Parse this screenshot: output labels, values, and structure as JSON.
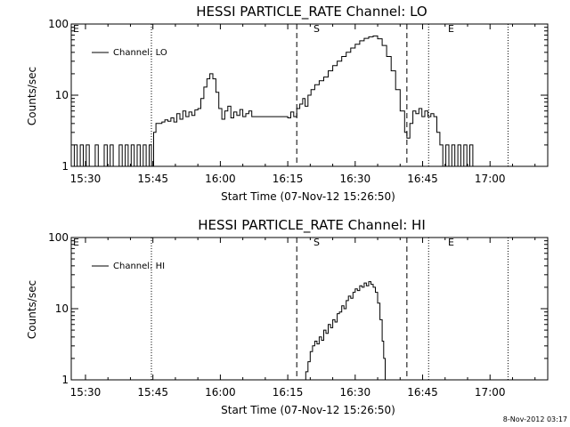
{
  "chart_data": [
    {
      "type": "line",
      "title": "HESSI PARTICLE_RATE Channel: LO",
      "xlabel": "Start Time (07-Nov-12 15:26:50)",
      "ylabel": "Counts/sec",
      "yscale": "log",
      "ylim": [
        1,
        100
      ],
      "xlim": [
        "15:26:50",
        "17:12:50"
      ],
      "xticks": [
        "15:30",
        "15:45",
        "16:00",
        "16:15",
        "16:30",
        "16:45",
        "17:00"
      ],
      "yticks": [
        "1",
        "10",
        "100"
      ],
      "legend": {
        "label": "Channel: LO",
        "placement": "top-left"
      },
      "markers": [
        {
          "label": "E",
          "x": "15:26:50",
          "style": "dotted"
        },
        {
          "label": "",
          "x": "15:44:40",
          "style": "dotted"
        },
        {
          "label": "S",
          "x": "16:17:00",
          "style": "dashed"
        },
        {
          "label": "",
          "x": "16:41:30",
          "style": "dashed"
        },
        {
          "label": "E",
          "x": "16:46:20",
          "style": "dotted"
        },
        {
          "label": "",
          "x": "17:04:00",
          "style": "dotted"
        }
      ],
      "series": [
        {
          "name": "Channel: LO",
          "points": [
            [
              "15:26:50",
              1
            ],
            [
              "15:27:30",
              2
            ],
            [
              "15:28:10",
              1
            ],
            [
              "15:28:50",
              2
            ],
            [
              "15:29:30",
              1
            ],
            [
              "15:30:10",
              2
            ],
            [
              "15:30:50",
              1
            ],
            [
              "15:31:30",
              1
            ],
            [
              "15:32:10",
              2
            ],
            [
              "15:32:50",
              1
            ],
            [
              "15:33:30",
              1
            ],
            [
              "15:34:10",
              2
            ],
            [
              "15:34:50",
              1
            ],
            [
              "15:35:30",
              2
            ],
            [
              "15:36:10",
              1
            ],
            [
              "15:36:50",
              1
            ],
            [
              "15:37:30",
              2
            ],
            [
              "15:38:10",
              1
            ],
            [
              "15:38:50",
              2
            ],
            [
              "15:39:30",
              1
            ],
            [
              "15:40:10",
              2
            ],
            [
              "15:40:50",
              1
            ],
            [
              "15:41:30",
              2
            ],
            [
              "15:42:10",
              1
            ],
            [
              "15:42:50",
              2
            ],
            [
              "15:43:30",
              1
            ],
            [
              "15:44:10",
              2
            ],
            [
              "15:44:40",
              1
            ],
            [
              "15:45:10",
              3
            ],
            [
              "15:45:40",
              4
            ],
            [
              "15:46:20",
              4
            ],
            [
              "15:47:00",
              4.2
            ],
            [
              "15:47:40",
              4.5
            ],
            [
              "15:48:20",
              4.3
            ],
            [
              "15:49:00",
              4.8
            ],
            [
              "15:49:40",
              4.2
            ],
            [
              "15:50:20",
              5.5
            ],
            [
              "15:51:00",
              4.6
            ],
            [
              "15:51:40",
              6
            ],
            [
              "15:52:20",
              5
            ],
            [
              "15:53:00",
              5.8
            ],
            [
              "15:53:40",
              5.2
            ],
            [
              "15:54:20",
              6.2
            ],
            [
              "15:55:00",
              6.5
            ],
            [
              "15:55:40",
              9
            ],
            [
              "15:56:20",
              13
            ],
            [
              "15:57:00",
              17
            ],
            [
              "15:57:40",
              20
            ],
            [
              "15:58:20",
              17
            ],
            [
              "15:59:00",
              11
            ],
            [
              "15:59:40",
              6.5
            ],
            [
              "16:00:20",
              4.6
            ],
            [
              "16:01:00",
              6
            ],
            [
              "16:01:40",
              7
            ],
            [
              "16:02:20",
              4.8
            ],
            [
              "16:03:00",
              5.8
            ],
            [
              "16:03:40",
              5.2
            ],
            [
              "16:04:20",
              6.3
            ],
            [
              "16:05:00",
              5
            ],
            [
              "16:05:40",
              5.5
            ],
            [
              "16:06:20",
              6
            ],
            [
              "16:07:00",
              5
            ],
            [
              "16:08:00",
              5
            ],
            [
              "16:09:00",
              5
            ],
            [
              "16:10:00",
              5
            ],
            [
              "16:11:00",
              5
            ],
            [
              "16:12:00",
              5
            ],
            [
              "16:13:00",
              5
            ],
            [
              "16:14:00",
              5
            ],
            [
              "16:15:00",
              4.8
            ],
            [
              "16:15:40",
              5.8
            ],
            [
              "16:16:20",
              5
            ],
            [
              "16:17:00",
              6.5
            ],
            [
              "16:17:40",
              7.5
            ],
            [
              "16:18:20",
              9
            ],
            [
              "16:18:50",
              7
            ],
            [
              "16:19:30",
              10
            ],
            [
              "16:20:10",
              12
            ],
            [
              "16:21:00",
              14
            ],
            [
              "16:22:00",
              16
            ],
            [
              "16:23:00",
              18
            ],
            [
              "16:24:00",
              22
            ],
            [
              "16:25:00",
              26
            ],
            [
              "16:26:00",
              30
            ],
            [
              "16:27:00",
              35
            ],
            [
              "16:28:00",
              40
            ],
            [
              "16:29:00",
              46
            ],
            [
              "16:30:00",
              52
            ],
            [
              "16:31:00",
              58
            ],
            [
              "16:32:00",
              63
            ],
            [
              "16:33:00",
              66
            ],
            [
              "16:34:00",
              68
            ],
            [
              "16:35:00",
              62
            ],
            [
              "16:36:00",
              50
            ],
            [
              "16:37:00",
              35
            ],
            [
              "16:38:00",
              22
            ],
            [
              "16:39:00",
              12
            ],
            [
              "16:40:00",
              6
            ],
            [
              "16:41:00",
              3
            ],
            [
              "16:41:30",
              2.5
            ],
            [
              "16:42:10",
              4
            ],
            [
              "16:42:50",
              6
            ],
            [
              "16:43:30",
              5.5
            ],
            [
              "16:44:10",
              6.5
            ],
            [
              "16:44:50",
              5
            ],
            [
              "16:45:30",
              6
            ],
            [
              "16:46:10",
              5
            ],
            [
              "16:46:50",
              5.5
            ],
            [
              "16:47:30",
              5
            ],
            [
              "16:48:10",
              3
            ],
            [
              "16:48:50",
              2
            ],
            [
              "16:49:30",
              1
            ],
            [
              "16:50:10",
              2
            ],
            [
              "16:50:50",
              1
            ],
            [
              "16:51:30",
              2
            ],
            [
              "16:52:10",
              1
            ],
            [
              "16:52:50",
              2
            ],
            [
              "16:53:30",
              1
            ],
            [
              "16:54:10",
              2
            ],
            [
              "16:54:50",
              1
            ],
            [
              "16:55:30",
              2
            ],
            [
              "16:56:10",
              1
            ]
          ]
        }
      ]
    },
    {
      "type": "line",
      "title": "HESSI PARTICLE_RATE Channel: HI",
      "xlabel": "Start Time (07-Nov-12 15:26:50)",
      "ylabel": "Counts/sec",
      "yscale": "log",
      "ylim": [
        1,
        100
      ],
      "xlim": [
        "15:26:50",
        "17:12:50"
      ],
      "xticks": [
        "15:30",
        "15:45",
        "16:00",
        "16:15",
        "16:30",
        "16:45",
        "17:00"
      ],
      "yticks": [
        "1",
        "10",
        "100"
      ],
      "legend": {
        "label": "Channel: HI",
        "placement": "top-left"
      },
      "markers": [
        {
          "label": "E",
          "x": "15:26:50",
          "style": "dotted"
        },
        {
          "label": "",
          "x": "15:44:40",
          "style": "dotted"
        },
        {
          "label": "S",
          "x": "16:17:00",
          "style": "dashed"
        },
        {
          "label": "",
          "x": "16:41:30",
          "style": "dashed"
        },
        {
          "label": "E",
          "x": "16:46:20",
          "style": "dotted"
        },
        {
          "label": "",
          "x": "17:04:00",
          "style": "dotted"
        }
      ],
      "series": [
        {
          "name": "Channel: HI",
          "points": [
            [
              "16:18:40",
              0.9
            ],
            [
              "16:19:00",
              1.3
            ],
            [
              "16:19:30",
              1.8
            ],
            [
              "16:20:00",
              2.5
            ],
            [
              "16:20:30",
              3
            ],
            [
              "16:21:00",
              3.5
            ],
            [
              "16:21:30",
              3.2
            ],
            [
              "16:22:00",
              4
            ],
            [
              "16:22:30",
              3.6
            ],
            [
              "16:23:00",
              5
            ],
            [
              "16:23:30",
              4.5
            ],
            [
              "16:24:00",
              6
            ],
            [
              "16:24:30",
              5.4
            ],
            [
              "16:25:00",
              7
            ],
            [
              "16:25:30",
              6.5
            ],
            [
              "16:26:00",
              8.5
            ],
            [
              "16:26:30",
              9
            ],
            [
              "16:27:00",
              11
            ],
            [
              "16:27:30",
              10
            ],
            [
              "16:28:00",
              13
            ],
            [
              "16:28:30",
              15
            ],
            [
              "16:29:00",
              14
            ],
            [
              "16:29:30",
              17
            ],
            [
              "16:30:00",
              19
            ],
            [
              "16:30:30",
              18
            ],
            [
              "16:31:00",
              21
            ],
            [
              "16:31:30",
              20
            ],
            [
              "16:32:00",
              23
            ],
            [
              "16:32:30",
              21
            ],
            [
              "16:33:00",
              24
            ],
            [
              "16:33:30",
              22
            ],
            [
              "16:34:00",
              20
            ],
            [
              "16:34:30",
              17
            ],
            [
              "16:35:00",
              12
            ],
            [
              "16:35:30",
              7
            ],
            [
              "16:36:00",
              3.5
            ],
            [
              "16:36:20",
              2
            ],
            [
              "16:36:40",
              0.9
            ]
          ]
        }
      ]
    }
  ],
  "footer": {
    "timestamp": "8-Nov-2012 03:17"
  }
}
